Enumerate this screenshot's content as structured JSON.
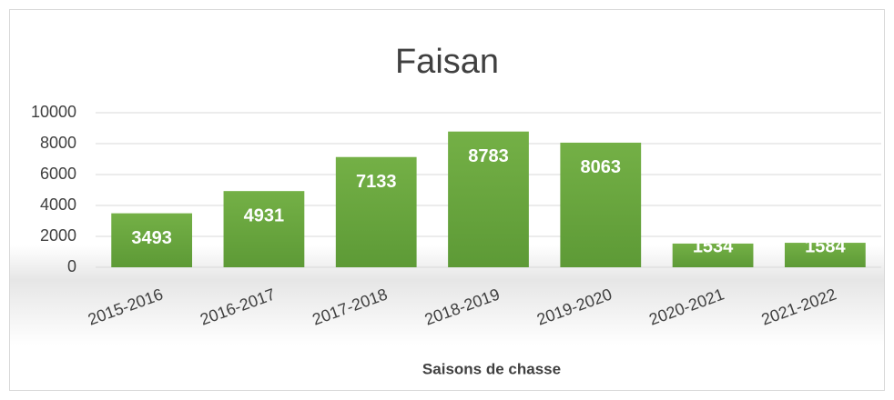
{
  "chart_data": {
    "type": "bar",
    "title": "Faisan",
    "x_label": "Saisons de chasse",
    "categories": [
      "2015-2016",
      "2016-2017",
      "2017-2018",
      "2018-2019",
      "2019-2020",
      "2020-2021",
      "2021-2022"
    ],
    "values": [
      3493,
      4931,
      7133,
      8783,
      8063,
      1534,
      1584
    ],
    "color": "#6aa63f",
    "ylim": [
      0,
      10000
    ],
    "yticks": [
      0,
      2000,
      4000,
      6000,
      8000,
      10000
    ],
    "grid": true,
    "data_labels": true
  }
}
